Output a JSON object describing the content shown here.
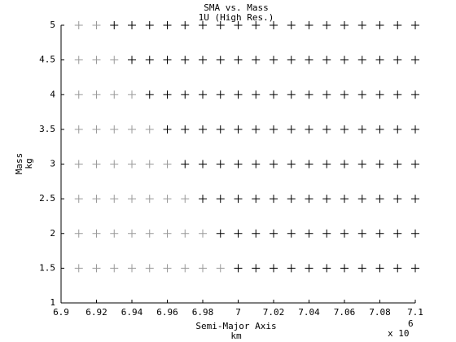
{
  "chart_data": {
    "type": "scatter",
    "title": "SMA vs. Mass",
    "subtitle": "1U (High Res.)",
    "x_label": "Semi-Major Axis",
    "x_unit": "km",
    "y_label": "Mass",
    "y_unit": "kg",
    "x_multiplier": {
      "base": "x 10",
      "exponent": "6"
    },
    "xlim": [
      6.9,
      7.1
    ],
    "xticks": [
      6.9,
      6.92,
      6.94,
      6.96,
      6.98,
      7,
      7.02,
      7.04,
      7.06,
      7.08,
      7.1
    ],
    "ylim": [
      1,
      5
    ],
    "yticks": [
      1,
      1.5,
      2,
      2.5,
      3,
      3.5,
      4,
      4.5,
      5
    ],
    "grid": false,
    "marker": "+",
    "series": [
      {
        "color": "#999999",
        "x": [
          6.91,
          6.92,
          6.91,
          6.92,
          6.93,
          6.91,
          6.92,
          6.93,
          6.94,
          6.91,
          6.92,
          6.93,
          6.94,
          6.95,
          6.91,
          6.92,
          6.93,
          6.94,
          6.95,
          6.96,
          6.91,
          6.92,
          6.93,
          6.94,
          6.95,
          6.96,
          6.97,
          6.91,
          6.92,
          6.93,
          6.94,
          6.95,
          6.96,
          6.97,
          6.98,
          6.91,
          6.92,
          6.93,
          6.94,
          6.95,
          6.96,
          6.97,
          6.98,
          6.99
        ],
        "values": [
          5,
          5,
          4.5,
          4.5,
          4.5,
          4,
          4,
          4,
          4,
          3.5,
          3.5,
          3.5,
          3.5,
          3.5,
          3,
          3,
          3,
          3,
          3,
          3,
          2.5,
          2.5,
          2.5,
          2.5,
          2.5,
          2.5,
          2.5,
          2,
          2,
          2,
          2,
          2,
          2,
          2,
          2,
          1.5,
          1.5,
          1.5,
          1.5,
          1.5,
          1.5,
          1.5,
          1.5,
          1.5
        ]
      },
      {
        "color": "#000000",
        "x": [
          6.93,
          6.94,
          6.95,
          6.96,
          6.97,
          6.98,
          6.99,
          7,
          7.01,
          7.02,
          7.03,
          7.04,
          7.05,
          7.06,
          7.07,
          7.08,
          7.09,
          7.1,
          6.94,
          6.95,
          6.96,
          6.97,
          6.98,
          6.99,
          7,
          7.01,
          7.02,
          7.03,
          7.04,
          7.05,
          7.06,
          7.07,
          7.08,
          7.09,
          7.1,
          6.95,
          6.96,
          6.97,
          6.98,
          6.99,
          7,
          7.01,
          7.02,
          7.03,
          7.04,
          7.05,
          7.06,
          7.07,
          7.08,
          7.09,
          7.1,
          6.96,
          6.97,
          6.98,
          6.99,
          7,
          7.01,
          7.02,
          7.03,
          7.04,
          7.05,
          7.06,
          7.07,
          7.08,
          7.09,
          7.1,
          6.97,
          6.98,
          6.99,
          7,
          7.01,
          7.02,
          7.03,
          7.04,
          7.05,
          7.06,
          7.07,
          7.08,
          7.09,
          7.1,
          6.98,
          6.99,
          7,
          7.01,
          7.02,
          7.03,
          7.04,
          7.05,
          7.06,
          7.07,
          7.08,
          7.09,
          7.1,
          6.99,
          7,
          7.01,
          7.02,
          7.03,
          7.04,
          7.05,
          7.06,
          7.07,
          7.08,
          7.09,
          7.1,
          7,
          7.01,
          7.02,
          7.03,
          7.04,
          7.05,
          7.06,
          7.07,
          7.08,
          7.09,
          7.1
        ],
        "values": [
          5,
          5,
          5,
          5,
          5,
          5,
          5,
          5,
          5,
          5,
          5,
          5,
          5,
          5,
          5,
          5,
          5,
          5,
          4.5,
          4.5,
          4.5,
          4.5,
          4.5,
          4.5,
          4.5,
          4.5,
          4.5,
          4.5,
          4.5,
          4.5,
          4.5,
          4.5,
          4.5,
          4.5,
          4.5,
          4,
          4,
          4,
          4,
          4,
          4,
          4,
          4,
          4,
          4,
          4,
          4,
          4,
          4,
          4,
          4,
          3.5,
          3.5,
          3.5,
          3.5,
          3.5,
          3.5,
          3.5,
          3.5,
          3.5,
          3.5,
          3.5,
          3.5,
          3.5,
          3.5,
          3.5,
          3,
          3,
          3,
          3,
          3,
          3,
          3,
          3,
          3,
          3,
          3,
          3,
          3,
          3,
          2.5,
          2.5,
          2.5,
          2.5,
          2.5,
          2.5,
          2.5,
          2.5,
          2.5,
          2.5,
          2.5,
          2.5,
          2.5,
          2,
          2,
          2,
          2,
          2,
          2,
          2,
          2,
          2,
          2,
          2,
          2,
          1.5,
          1.5,
          1.5,
          1.5,
          1.5,
          1.5,
          1.5,
          1.5,
          1.5,
          1.5,
          1.5
        ]
      }
    ]
  }
}
